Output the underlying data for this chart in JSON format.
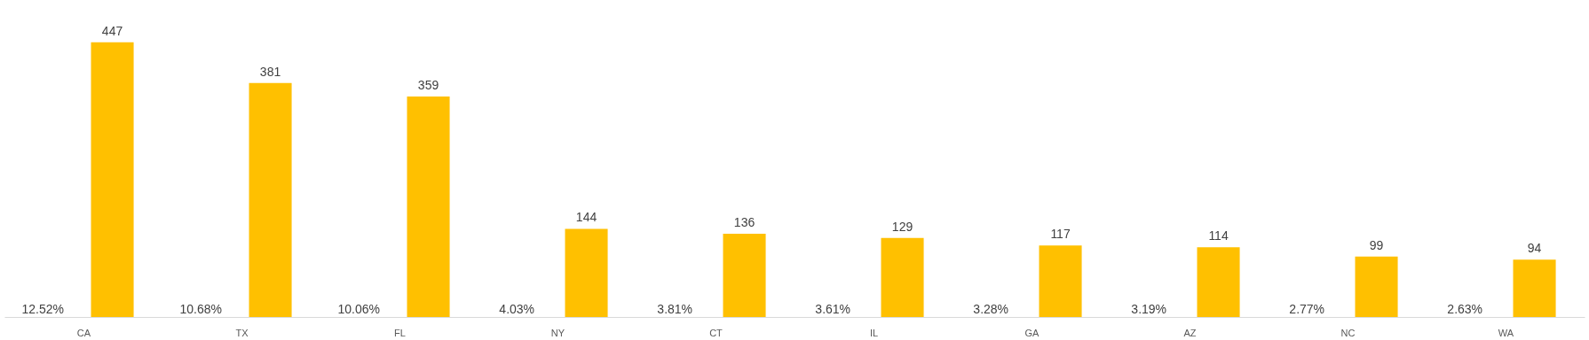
{
  "chart_data": {
    "type": "bar",
    "categories": [
      "CA",
      "TX",
      "FL",
      "NY",
      "CT",
      "IL",
      "GA",
      "AZ",
      "NC",
      "WA"
    ],
    "series": [
      {
        "color": "#ffc000",
        "values": [
          447,
          381,
          359,
          144,
          136,
          129,
          117,
          114,
          99,
          94
        ]
      }
    ],
    "data_labels": true,
    "grid": false,
    "annotations": [
      "12.52%",
      "10.68%",
      "10.06%",
      "4.03%",
      "3.81%",
      "3.61%",
      "3.28%",
      "3.19%",
      "2.77%",
      "2.63%"
    ]
  }
}
